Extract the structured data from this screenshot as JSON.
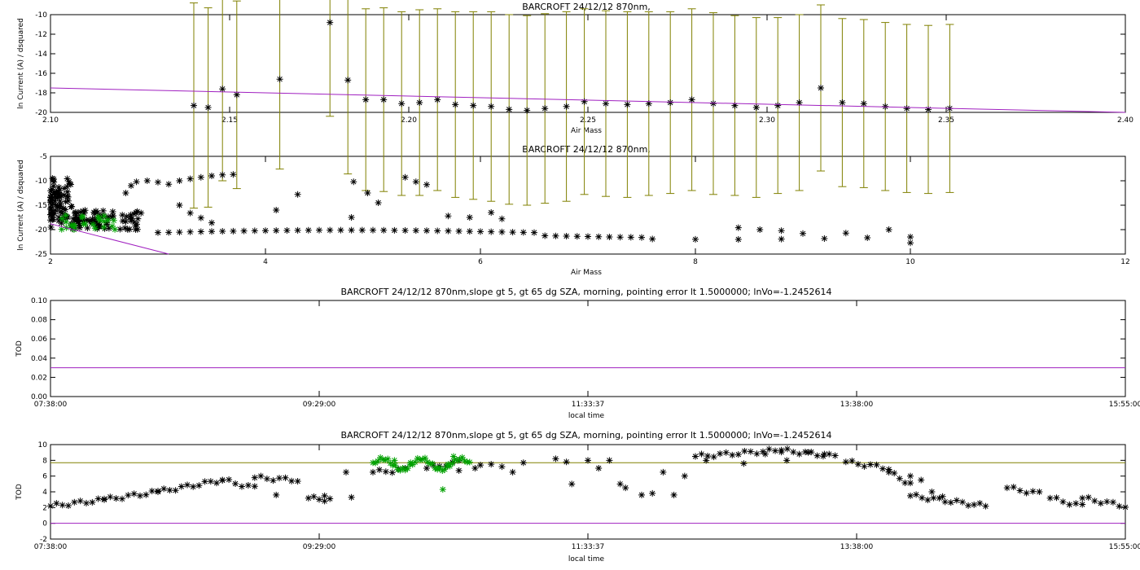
{
  "colors": {
    "axis": "#000000",
    "errorbar": "#808000",
    "fit": "#a020c0",
    "green": "#00a000",
    "black": "#000000"
  },
  "chart_data": [
    {
      "type": "scatter",
      "title": "BARCROFT 24/12/12 870nm,",
      "xlabel": "Air Mass",
      "ylabel": "ln Current (A) / dsquared",
      "xlim": [
        2.1,
        2.4
      ],
      "ylim": [
        -20,
        -10
      ],
      "x_ticks": [
        "2.10",
        "2.15",
        "2.20",
        "2.25",
        "2.30",
        "2.35",
        "2.40"
      ],
      "y_ticks": [
        "-10",
        "-12",
        "-14",
        "-16",
        "-18",
        "-20"
      ],
      "grid": false,
      "points": [
        [
          2.14,
          -19.3,
          10.5
        ],
        [
          2.144,
          -19.5,
          10.2
        ],
        [
          2.148,
          -17.6,
          9.4
        ],
        [
          2.152,
          -18.2,
          9.6
        ],
        [
          2.164,
          -16.6,
          9.2
        ],
        [
          2.178,
          -10.8,
          9.6
        ],
        [
          2.183,
          -16.7,
          9.6
        ],
        [
          2.188,
          -18.7,
          9.3
        ],
        [
          2.193,
          -18.7,
          9.4
        ],
        [
          2.198,
          -19.1,
          9.4
        ],
        [
          2.203,
          -19.0,
          9.5
        ],
        [
          2.208,
          -18.7,
          9.3
        ],
        [
          2.213,
          -19.2,
          9.5
        ],
        [
          2.218,
          -19.3,
          9.6
        ],
        [
          2.223,
          -19.4,
          9.7
        ],
        [
          2.228,
          -19.7,
          9.7
        ],
        [
          2.233,
          -19.8,
          9.7
        ],
        [
          2.238,
          -19.6,
          9.7
        ],
        [
          2.244,
          -19.4,
          9.7
        ],
        [
          2.249,
          -18.9,
          9.5
        ],
        [
          2.255,
          -19.1,
          9.5
        ],
        [
          2.261,
          -19.2,
          9.5
        ],
        [
          2.267,
          -19.1,
          9.4
        ],
        [
          2.273,
          -19.0,
          9.3
        ],
        [
          2.279,
          -18.7,
          9.3
        ],
        [
          2.285,
          -19.1,
          9.3
        ],
        [
          2.291,
          -19.3,
          9.2
        ],
        [
          2.297,
          -19.5,
          9.2
        ],
        [
          2.303,
          -19.3,
          9.0
        ],
        [
          2.309,
          -19.0,
          9.0
        ],
        [
          2.315,
          -17.5,
          8.5
        ],
        [
          2.321,
          -19.0,
          8.6
        ],
        [
          2.327,
          -19.1,
          8.6
        ],
        [
          2.333,
          -19.4,
          8.6
        ],
        [
          2.339,
          -19.6,
          8.6
        ],
        [
          2.345,
          -19.7,
          8.6
        ],
        [
          2.351,
          -19.6,
          8.6
        ]
      ],
      "fit_line": [
        [
          2.1,
          -17.5
        ],
        [
          2.4,
          -20.0
        ]
      ]
    },
    {
      "type": "scatter",
      "title": "BARCROFT 24/12/12 870nm,",
      "xlabel": "Air Mass",
      "ylabel": "ln Current (A) / dsquared",
      "xlim": [
        2,
        12
      ],
      "ylim": [
        -25,
        -5
      ],
      "x_ticks": [
        "2",
        "4",
        "6",
        "8",
        "10",
        "12"
      ],
      "y_ticks": [
        "-5",
        "-10",
        "-15",
        "-20",
        "-25"
      ],
      "grid": false,
      "fit_line": [
        [
          2.0,
          -18.8
        ],
        [
          3.1,
          -25.0
        ]
      ]
    },
    {
      "type": "line",
      "title": "BARCROFT 24/12/12 870nm,slope gt 5, gt 65 dg SZA, morning, pointing error lt 1.5000000; lnVo=-1.2452614",
      "xlabel": "local time",
      "ylabel": "TOD",
      "ylim": [
        0.0,
        0.1
      ],
      "x_ticks": [
        "07:38:00",
        "09:29:00",
        "11:33:37",
        "13:38:00",
        "15:55:00"
      ],
      "y_ticks": [
        "0.10",
        "0.08",
        "0.06",
        "0.04",
        "0.02",
        "0.00"
      ],
      "grid": false,
      "series": [
        {
          "values": [
            0.03,
            0.03
          ]
        }
      ]
    },
    {
      "type": "scatter",
      "title": "BARCROFT 24/12/12 870nm,slope gt 5, gt 65 dg SZA, morning, pointing error lt 1.5000000; lnVo=-1.2452614",
      "xlabel": "local time",
      "ylabel": "TOD",
      "ylim": [
        -2,
        10
      ],
      "x_ticks": [
        "07:38:00",
        "09:29:00",
        "11:33:37",
        "13:38:00",
        "15:55:00"
      ],
      "y_ticks": [
        "10",
        "8",
        "6",
        "4",
        "2",
        "0",
        "-2"
      ],
      "grid": false,
      "hlines": [
        7.7,
        0.0
      ]
    }
  ]
}
